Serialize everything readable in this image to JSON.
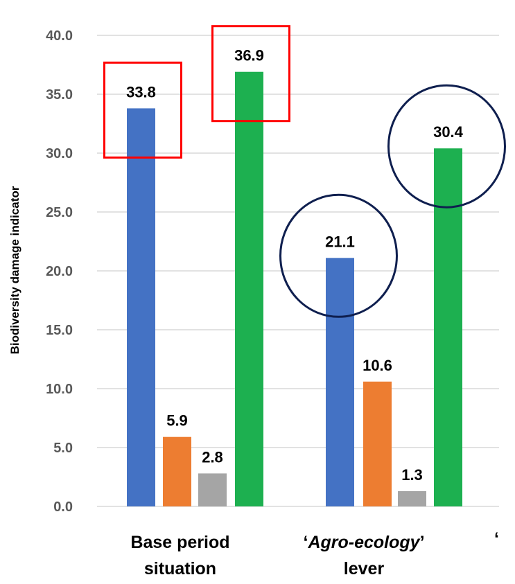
{
  "chart_data": {
    "type": "bar",
    "ylabel": "Biodiversity damage indicator",
    "ylim": [
      0,
      40
    ],
    "yticks": [
      "0.0",
      "5.0",
      "10.0",
      "15.0",
      "20.0",
      "25.0",
      "30.0",
      "35.0",
      "40.0"
    ],
    "grid": true,
    "categories": [
      {
        "line1": "Base period",
        "line2": "situation"
      },
      {
        "line1_quote_open": "‘",
        "line1_text": "Agro-ecology",
        "line1_quote_close": "’",
        "line2": "lever"
      }
    ],
    "trailing_label": "‘",
    "series": [
      {
        "values": [
          33.8,
          21.1
        ],
        "labels": [
          "33.8",
          "21.1"
        ],
        "color": "#4472C4"
      },
      {
        "values": [
          5.9,
          10.6
        ],
        "labels": [
          "5.9",
          "10.6"
        ],
        "color": "#ED7D31"
      },
      {
        "values": [
          2.8,
          1.3
        ],
        "labels": [
          "2.8",
          "1.3"
        ],
        "color": "#A5A5A5"
      },
      {
        "values": [
          36.9,
          30.4
        ],
        "labels": [
          "36.9",
          "30.4"
        ],
        "color": "#1DB050"
      }
    ],
    "highlights": {
      "boxes": {
        "color": "#FF0000",
        "targets": [
          [
            0,
            0
          ],
          [
            0,
            3
          ]
        ]
      },
      "circles": {
        "color": "#0F1F4F",
        "targets": [
          [
            1,
            0
          ],
          [
            1,
            3
          ]
        ]
      }
    }
  }
}
